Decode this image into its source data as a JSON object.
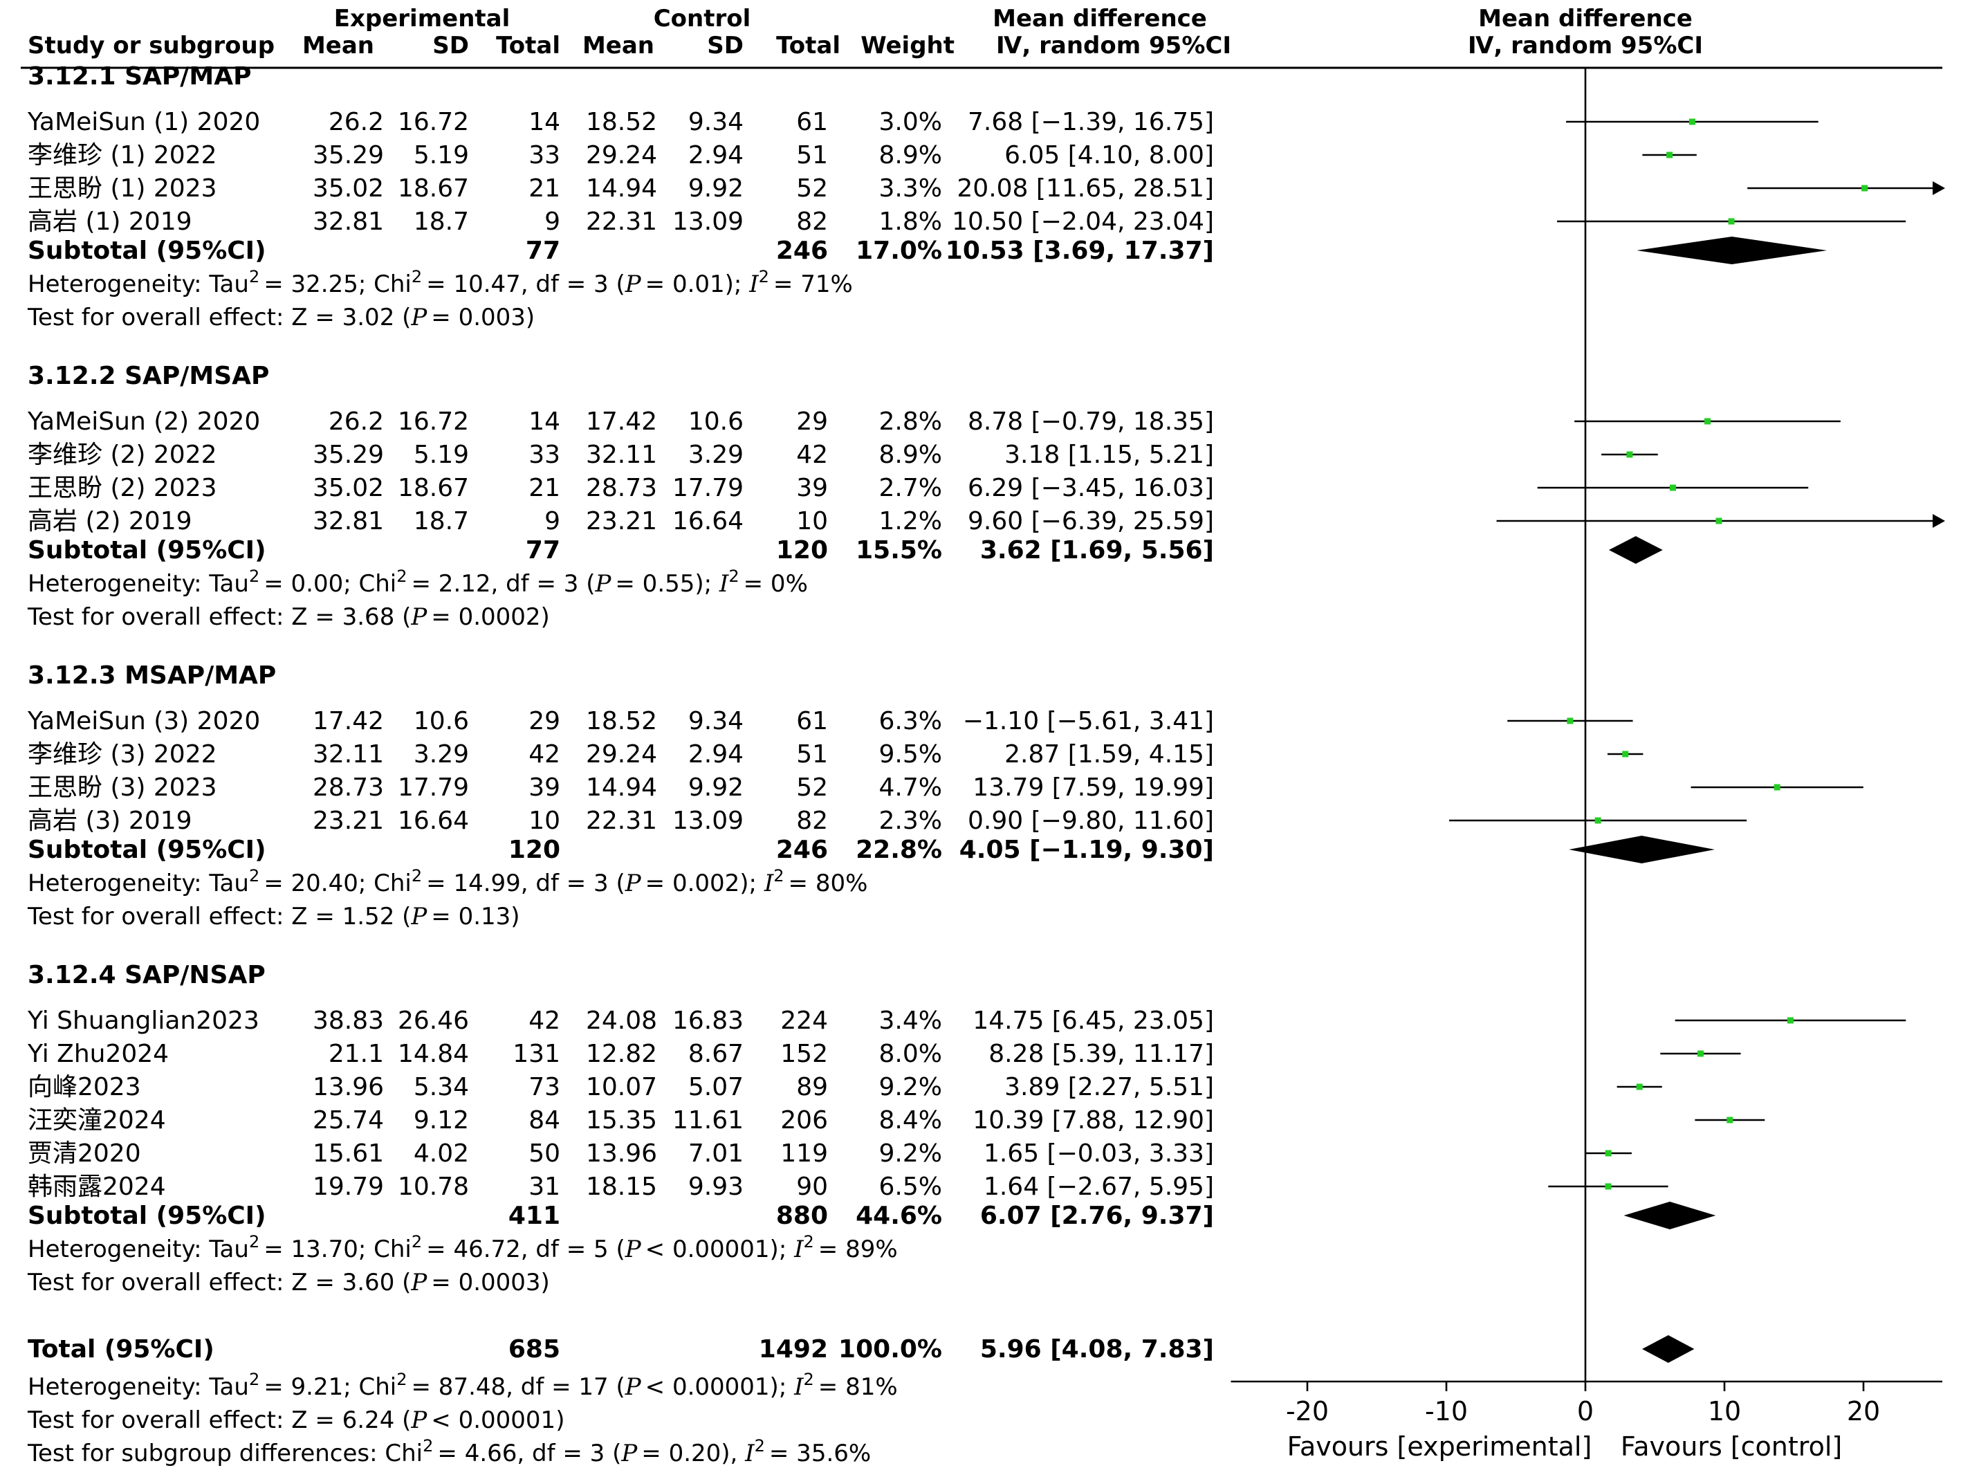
{
  "header": {
    "group_experimental": "Experimental",
    "group_control": "Control",
    "col_study": "Study or subgroup",
    "col_exp_mean": "Mean",
    "col_exp_sd": "SD",
    "col_exp_total": "Total",
    "col_ctl_mean": "Mean",
    "col_ctl_sd": "SD",
    "col_ctl_total": "Total",
    "col_weight": "Weight",
    "col_md_title": "Mean difference",
    "col_md_method": "Ⅳ, random 95%CI",
    "plot_title": "Mean difference",
    "plot_method": "Ⅳ, random 95%CI"
  },
  "subgroups": [
    {
      "title": "3.12.1 SAP/MAP",
      "studies": [
        {
          "name": "YaMeiSun (1) 2020",
          "exp_mean": "26.2",
          "exp_sd": "16.72",
          "exp_total": "14",
          "ctl_mean": "18.52",
          "ctl_sd": "9.34",
          "ctl_total": "61",
          "weight": "3.0%",
          "ci_text": "7.68 [−1.39, 16.75]",
          "md": 7.68,
          "lo": -1.39,
          "hi": 16.75,
          "w": 3.0
        },
        {
          "name": "李维珍 (1) 2022",
          "exp_mean": "35.29",
          "exp_sd": "5.19",
          "exp_total": "33",
          "ctl_mean": "29.24",
          "ctl_sd": "2.94",
          "ctl_total": "51",
          "weight": "8.9%",
          "ci_text": "6.05 [4.10, 8.00]",
          "md": 6.05,
          "lo": 4.1,
          "hi": 8.0,
          "w": 8.9
        },
        {
          "name": "王思盼 (1) 2023",
          "exp_mean": "35.02",
          "exp_sd": "18.67",
          "exp_total": "21",
          "ctl_mean": "14.94",
          "ctl_sd": "9.92",
          "ctl_total": "52",
          "weight": "3.3%",
          "ci_text": "20.08 [11.65, 28.51]",
          "md": 20.08,
          "lo": 11.65,
          "hi": 28.51,
          "w": 3.3
        },
        {
          "name": "高岩 (1) 2019",
          "exp_mean": "32.81",
          "exp_sd": "18.7",
          "exp_total": "9",
          "ctl_mean": "22.31",
          "ctl_sd": "13.09",
          "ctl_total": "82",
          "weight": "1.8%",
          "ci_text": "10.50 [−2.04, 23.04]",
          "md": 10.5,
          "lo": -2.04,
          "hi": 23.04,
          "w": 1.8
        }
      ],
      "subtotal": {
        "label": "Subtotal (95%CI)",
        "exp_total": "77",
        "ctl_total": "246",
        "weight": "17.0%",
        "ci_text": "10.53 [3.69, 17.37]",
        "md": 10.53,
        "lo": 3.69,
        "hi": 17.37
      },
      "heterogeneity": {
        "prefix": "Heterogeneity: Tau",
        "tau2": "= 32.25; Chi",
        "chi2": "= 10.47, df = 3 (",
        "p": "= 0.01); ",
        "i2": "= 71%"
      },
      "overall": {
        "prefix": "Test for overall effect: Z = 3.02 (",
        "p": "= 0.003)"
      }
    },
    {
      "title": "3.12.2 SAP/MSAP",
      "studies": [
        {
          "name": "YaMeiSun (2) 2020",
          "exp_mean": "26.2",
          "exp_sd": "16.72",
          "exp_total": "14",
          "ctl_mean": "17.42",
          "ctl_sd": "10.6",
          "ctl_total": "29",
          "weight": "2.8%",
          "ci_text": "8.78 [−0.79, 18.35]",
          "md": 8.78,
          "lo": -0.79,
          "hi": 18.35,
          "w": 2.8
        },
        {
          "name": "李维珍 (2) 2022",
          "exp_mean": "35.29",
          "exp_sd": "5.19",
          "exp_total": "33",
          "ctl_mean": "32.11",
          "ctl_sd": "3.29",
          "ctl_total": "42",
          "weight": "8.9%",
          "ci_text": "3.18 [1.15, 5.21]",
          "md": 3.18,
          "lo": 1.15,
          "hi": 5.21,
          "w": 8.9
        },
        {
          "name": "王思盼 (2) 2023",
          "exp_mean": "35.02",
          "exp_sd": "18.67",
          "exp_total": "21",
          "ctl_mean": "28.73",
          "ctl_sd": "17.79",
          "ctl_total": "39",
          "weight": "2.7%",
          "ci_text": "6.29 [−3.45, 16.03]",
          "md": 6.29,
          "lo": -3.45,
          "hi": 16.03,
          "w": 2.7
        },
        {
          "name": "高岩 (2) 2019",
          "exp_mean": "32.81",
          "exp_sd": "18.7",
          "exp_total": "9",
          "ctl_mean": "23.21",
          "ctl_sd": "16.64",
          "ctl_total": "10",
          "weight": "1.2%",
          "ci_text": "9.60 [−6.39, 25.59]",
          "md": 9.6,
          "lo": -6.39,
          "hi": 25.59,
          "w": 1.2
        }
      ],
      "subtotal": {
        "label": "Subtotal (95%CI)",
        "exp_total": "77",
        "ctl_total": "120",
        "weight": "15.5%",
        "ci_text": "3.62 [1.69, 5.56]",
        "md": 3.62,
        "lo": 1.69,
        "hi": 5.56
      },
      "heterogeneity": {
        "prefix": "Heterogeneity: Tau",
        "tau2": "= 0.00; Chi",
        "chi2": "= 2.12, df = 3 (",
        "p": "= 0.55); ",
        "i2": "= 0%"
      },
      "overall": {
        "prefix": "Test for overall effect: Z = 3.68 (",
        "p": "= 0.0002)"
      }
    },
    {
      "title": "3.12.3 MSAP/MAP",
      "studies": [
        {
          "name": "YaMeiSun (3) 2020",
          "exp_mean": "17.42",
          "exp_sd": "10.6",
          "exp_total": "29",
          "ctl_mean": "18.52",
          "ctl_sd": "9.34",
          "ctl_total": "61",
          "weight": "6.3%",
          "ci_text": "−1.10 [−5.61, 3.41]",
          "md": -1.1,
          "lo": -5.61,
          "hi": 3.41,
          "w": 6.3
        },
        {
          "name": "李维珍 (3) 2022",
          "exp_mean": "32.11",
          "exp_sd": "3.29",
          "exp_total": "42",
          "ctl_mean": "29.24",
          "ctl_sd": "2.94",
          "ctl_total": "51",
          "weight": "9.5%",
          "ci_text": "2.87 [1.59, 4.15]",
          "md": 2.87,
          "lo": 1.59,
          "hi": 4.15,
          "w": 9.5
        },
        {
          "name": "王思盼 (3) 2023",
          "exp_mean": "28.73",
          "exp_sd": "17.79",
          "exp_total": "39",
          "ctl_mean": "14.94",
          "ctl_sd": "9.92",
          "ctl_total": "52",
          "weight": "4.7%",
          "ci_text": "13.79 [7.59, 19.99]",
          "md": 13.79,
          "lo": 7.59,
          "hi": 19.99,
          "w": 4.7
        },
        {
          "name": "高岩 (3) 2019",
          "exp_mean": "23.21",
          "exp_sd": "16.64",
          "exp_total": "10",
          "ctl_mean": "22.31",
          "ctl_sd": "13.09",
          "ctl_total": "82",
          "weight": "2.3%",
          "ci_text": "0.90 [−9.80, 11.60]",
          "md": 0.9,
          "lo": -9.8,
          "hi": 11.6,
          "w": 2.3
        }
      ],
      "subtotal": {
        "label": "Subtotal (95%CI)",
        "exp_total": "120",
        "ctl_total": "246",
        "weight": "22.8%",
        "ci_text": "4.05 [−1.19, 9.30]",
        "md": 4.05,
        "lo": -1.19,
        "hi": 9.3
      },
      "heterogeneity": {
        "prefix": "Heterogeneity: Tau",
        "tau2": "= 20.40; Chi",
        "chi2": "= 14.99, df = 3 (",
        "p": "= 0.002); ",
        "i2": "= 80%"
      },
      "overall": {
        "prefix": "Test for overall effect: Z = 1.52 (",
        "p": "= 0.13)"
      }
    },
    {
      "title": "3.12.4 SAP/NSAP",
      "studies": [
        {
          "name": "Yi Shuanglian2023",
          "exp_mean": "38.83",
          "exp_sd": "26.46",
          "exp_total": "42",
          "ctl_mean": "24.08",
          "ctl_sd": "16.83",
          "ctl_total": "224",
          "weight": "3.4%",
          "ci_text": "14.75 [6.45, 23.05]",
          "md": 14.75,
          "lo": 6.45,
          "hi": 23.05,
          "w": 3.4
        },
        {
          "name": "Yi Zhu2024",
          "exp_mean": "21.1",
          "exp_sd": "14.84",
          "exp_total": "131",
          "ctl_mean": "12.82",
          "ctl_sd": "8.67",
          "ctl_total": "152",
          "weight": "8.0%",
          "ci_text": "8.28 [5.39, 11.17]",
          "md": 8.28,
          "lo": 5.39,
          "hi": 11.17,
          "w": 8.0
        },
        {
          "name": "向峰2023",
          "exp_mean": "13.96",
          "exp_sd": "5.34",
          "exp_total": "73",
          "ctl_mean": "10.07",
          "ctl_sd": "5.07",
          "ctl_total": "89",
          "weight": "9.2%",
          "ci_text": "3.89 [2.27, 5.51]",
          "md": 3.89,
          "lo": 2.27,
          "hi": 5.51,
          "w": 9.2
        },
        {
          "name": "汪奕潼2024",
          "exp_mean": "25.74",
          "exp_sd": "9.12",
          "exp_total": "84",
          "ctl_mean": "15.35",
          "ctl_sd": "11.61",
          "ctl_total": "206",
          "weight": "8.4%",
          "ci_text": "10.39 [7.88, 12.90]",
          "md": 10.39,
          "lo": 7.88,
          "hi": 12.9,
          "w": 8.4
        },
        {
          "name": "贾清2020",
          "exp_mean": "15.61",
          "exp_sd": "4.02",
          "exp_total": "50",
          "ctl_mean": "13.96",
          "ctl_sd": "7.01",
          "ctl_total": "119",
          "weight": "9.2%",
          "ci_text": "1.65 [−0.03, 3.33]",
          "md": 1.65,
          "lo": -0.03,
          "hi": 3.33,
          "w": 9.2
        },
        {
          "name": "韩雨露2024",
          "exp_mean": "19.79",
          "exp_sd": "10.78",
          "exp_total": "31",
          "ctl_mean": "18.15",
          "ctl_sd": "9.93",
          "ctl_total": "90",
          "weight": "6.5%",
          "ci_text": "1.64 [−2.67, 5.95]",
          "md": 1.64,
          "lo": -2.67,
          "hi": 5.95,
          "w": 6.5
        }
      ],
      "subtotal": {
        "label": "Subtotal (95%CI)",
        "exp_total": "411",
        "ctl_total": "880",
        "weight": "44.6%",
        "ci_text": "6.07 [2.76, 9.37]",
        "md": 6.07,
        "lo": 2.76,
        "hi": 9.37
      },
      "heterogeneity": {
        "prefix": "Heterogeneity: Tau",
        "tau2": "= 13.70; Chi",
        "chi2": "= 46.72, df = 5 (",
        "p": "< 0.00001); ",
        "i2": "= 89%"
      },
      "overall": {
        "prefix": "Test for overall effect: Z = 3.60 (",
        "p": "= 0.0003)"
      }
    }
  ],
  "total": {
    "label": "Total (95%CI)",
    "exp_total": "685",
    "ctl_total": "1492",
    "weight": "100.0%",
    "ci_text": "5.96 [4.08, 7.83]",
    "md": 5.96,
    "lo": 4.08,
    "hi": 7.83,
    "heterogeneity": {
      "prefix": "Heterogeneity: Tau",
      "tau2": "= 9.21; Chi",
      "chi2": "= 87.48, df = 17 (",
      "p": "< 0.00001); ",
      "i2": "= 81%"
    },
    "overall": {
      "prefix": "Test for overall effect: Z = 6.24 (",
      "p": "< 0.00001)"
    },
    "subgroup_diff": {
      "prefix": "Test for subgroup differences: Chi",
      "chi2": "= 4.66, df = 3 (",
      "p": "= 0.20), ",
      "i2": "= 35.6%"
    }
  },
  "symbols": {
    "sup2": "2",
    "p": "P",
    "i": "I"
  },
  "chart_data": {
    "type": "forest",
    "title": "Mean difference",
    "subtitle": "Ⅳ, random 95%CI",
    "xlim": [
      -25,
      25
    ],
    "ticks": [
      -20,
      -10,
      0,
      10,
      20
    ],
    "tick_labels": [
      "-20",
      "-10",
      "0",
      "10",
      "20"
    ],
    "xlabel_left": "Favours [experimental]",
    "xlabel_right": "Favours [control]",
    "marker_color": "#22cc22",
    "line_color": "#000000"
  }
}
